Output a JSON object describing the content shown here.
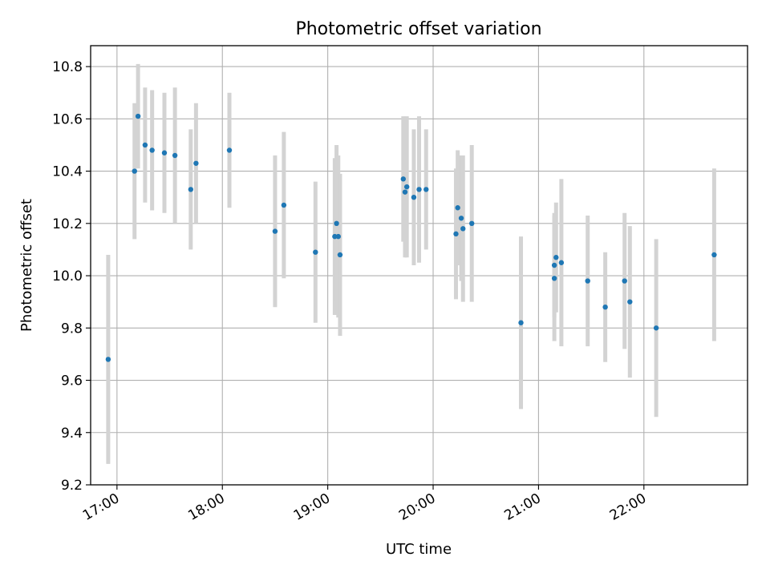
{
  "chart_data": {
    "type": "scatter",
    "title": "Photometric offset variation",
    "xlabel": "UTC time",
    "ylabel": "Photometric offset",
    "x_is_time": true,
    "xlim": [
      "16:45",
      "22:59"
    ],
    "ylim": [
      9.2,
      10.88
    ],
    "x_ticks": [
      "17:00",
      "18:00",
      "19:00",
      "20:00",
      "21:00",
      "22:00"
    ],
    "y_ticks": [
      9.2,
      9.4,
      9.6,
      9.8,
      10.0,
      10.2,
      10.4,
      10.6,
      10.8
    ],
    "y_tick_labels": [
      "9.2",
      "9.4",
      "9.6",
      "9.8",
      "10.0",
      "10.2",
      "10.4",
      "10.6",
      "10.8"
    ],
    "grid": true,
    "colors": {
      "point": "#1f77b4",
      "errorbar": "#d3d3d3",
      "grid": "#b0b0b0"
    },
    "points": [
      {
        "t": "16:55",
        "y": 9.68,
        "err": 0.4
      },
      {
        "t": "17:10",
        "y": 10.4,
        "err": 0.26
      },
      {
        "t": "17:12",
        "y": 10.61,
        "err": 0.2
      },
      {
        "t": "17:16",
        "y": 10.5,
        "err": 0.22
      },
      {
        "t": "17:20",
        "y": 10.48,
        "err": 0.23
      },
      {
        "t": "17:27",
        "y": 10.47,
        "err": 0.23
      },
      {
        "t": "17:33",
        "y": 10.46,
        "err": 0.26
      },
      {
        "t": "17:42",
        "y": 10.33,
        "err": 0.23
      },
      {
        "t": "17:45",
        "y": 10.43,
        "err": 0.23
      },
      {
        "t": "18:04",
        "y": 10.48,
        "err": 0.22
      },
      {
        "t": "18:30",
        "y": 10.17,
        "err": 0.29
      },
      {
        "t": "18:35",
        "y": 10.27,
        "err": 0.28
      },
      {
        "t": "18:53",
        "y": 10.09,
        "err": 0.27
      },
      {
        "t": "19:04",
        "y": 10.15,
        "err": 0.3
      },
      {
        "t": "19:05",
        "y": 10.2,
        "err": 0.3
      },
      {
        "t": "19:06",
        "y": 10.15,
        "err": 0.31
      },
      {
        "t": "19:07",
        "y": 10.08,
        "err": 0.31
      },
      {
        "t": "19:43",
        "y": 10.37,
        "err": 0.24
      },
      {
        "t": "19:44",
        "y": 10.32,
        "err": 0.25
      },
      {
        "t": "19:45",
        "y": 10.34,
        "err": 0.27
      },
      {
        "t": "19:49",
        "y": 10.3,
        "err": 0.26
      },
      {
        "t": "19:52",
        "y": 10.33,
        "err": 0.28
      },
      {
        "t": "19:56",
        "y": 10.33,
        "err": 0.23
      },
      {
        "t": "20:13",
        "y": 10.16,
        "err": 0.25
      },
      {
        "t": "20:14",
        "y": 10.26,
        "err": 0.22
      },
      {
        "t": "20:16",
        "y": 10.22,
        "err": 0.24
      },
      {
        "t": "20:17",
        "y": 10.18,
        "err": 0.28
      },
      {
        "t": "20:22",
        "y": 10.2,
        "err": 0.3
      },
      {
        "t": "20:50",
        "y": 9.82,
        "err": 0.33
      },
      {
        "t": "21:09",
        "y": 9.99,
        "err": 0.24
      },
      {
        "t": "21:09",
        "y": 10.04,
        "err": 0.2
      },
      {
        "t": "21:10",
        "y": 10.07,
        "err": 0.21
      },
      {
        "t": "21:13",
        "y": 10.05,
        "err": 0.32
      },
      {
        "t": "21:28",
        "y": 9.98,
        "err": 0.25
      },
      {
        "t": "21:38",
        "y": 9.88,
        "err": 0.21
      },
      {
        "t": "21:49",
        "y": 9.98,
        "err": 0.26
      },
      {
        "t": "21:52",
        "y": 9.9,
        "err": 0.29
      },
      {
        "t": "22:07",
        "y": 9.8,
        "err": 0.34
      },
      {
        "t": "22:40",
        "y": 10.08,
        "err": 0.33
      }
    ]
  }
}
